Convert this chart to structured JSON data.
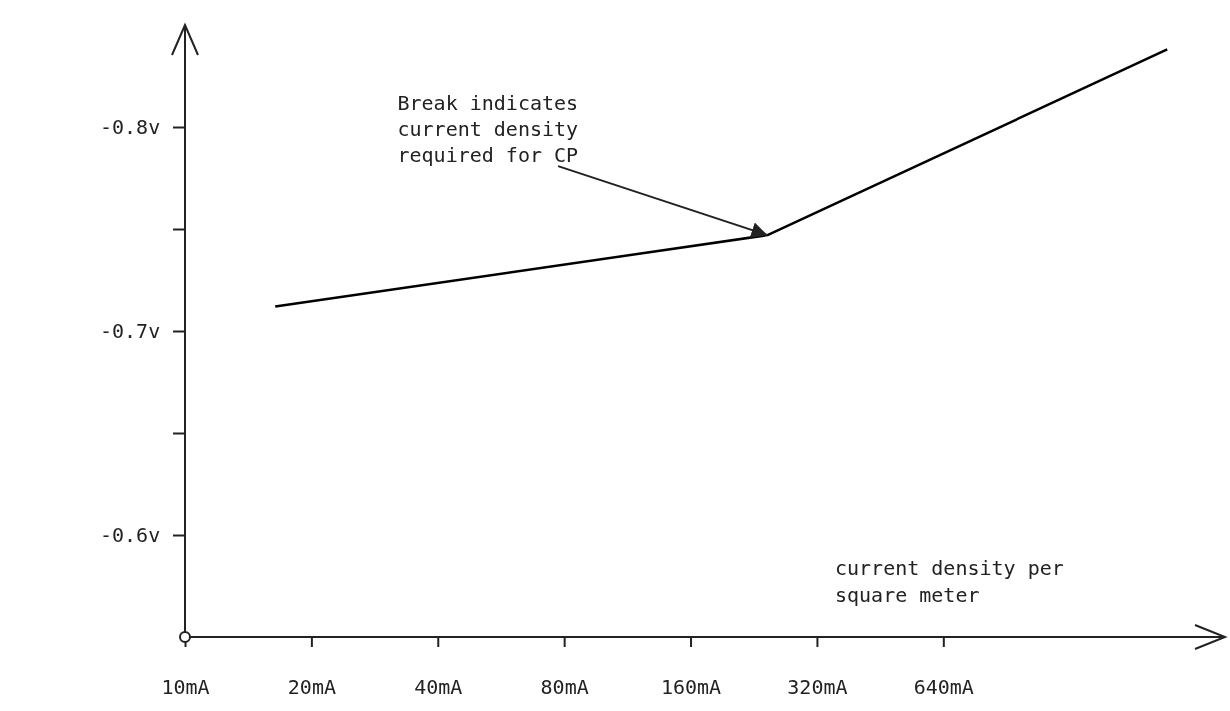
{
  "chart_data": {
    "type": "line",
    "xlabel": "current density per square meter",
    "x": [
      16.4,
      244,
      2185
    ],
    "series": [
      {
        "color": "#000000",
        "values": [
          -0.712,
          -0.747,
          -0.838
        ]
      }
    ],
    "log": "x",
    "xlim": [
      10,
      3000
    ],
    "xticks": [
      {
        "value": 10,
        "label": "10mA"
      },
      {
        "value": 20,
        "label": "20mA"
      },
      {
        "value": 40,
        "label": "40mA"
      },
      {
        "value": 80,
        "label": "80mA"
      },
      {
        "value": 160,
        "label": "160mA"
      },
      {
        "value": 320,
        "label": "320mA"
      },
      {
        "value": 640,
        "label": "640mA"
      }
    ],
    "ylim": [
      -0.55,
      -0.85
    ],
    "yticks": [
      {
        "value": -0.6,
        "label": "-0.6v"
      },
      {
        "value": -0.65,
        "label": null
      },
      {
        "value": -0.7,
        "label": "-0.7v"
      },
      {
        "value": -0.75,
        "label": null
      },
      {
        "value": -0.8,
        "label": "-0.8v"
      }
    ],
    "annotations": [
      {
        "text": "Break indicates current density required for CP",
        "x": 244,
        "y": -0.747
      }
    ],
    "grid": false,
    "marker": "none",
    "line_style": "solid"
  }
}
